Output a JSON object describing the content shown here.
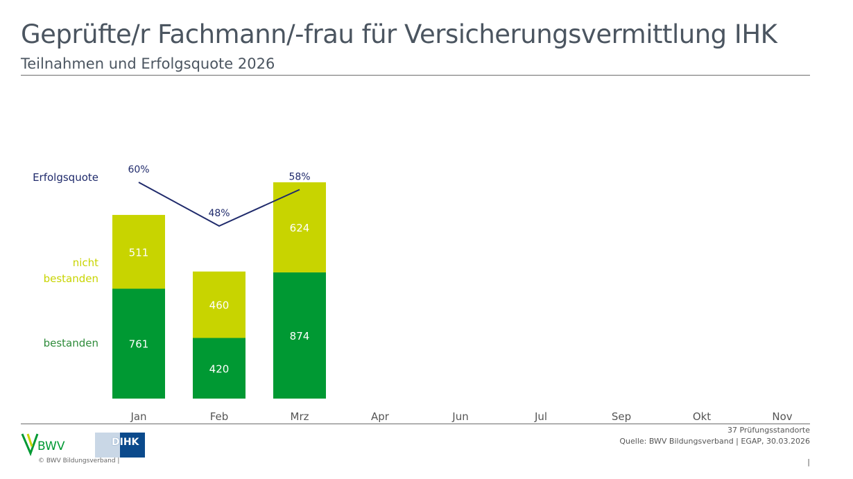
{
  "header": {
    "title": "Geprüfte/r Fachmann/-frau für Versicherungsvermittlung IHK",
    "subtitle": "Teilnahmen und Erfolgsquote 2026"
  },
  "chart_data": {
    "type": "bar",
    "stacked": true,
    "categories": [
      "Jan",
      "Feb",
      "Mrz",
      "Apr",
      "Jun",
      "Jul",
      "Sep",
      "Okt",
      "Nov"
    ],
    "series": [
      {
        "name": "bestanden",
        "values": [
          761,
          420,
          874,
          null,
          null,
          null,
          null,
          null,
          null
        ],
        "color": "#009933"
      },
      {
        "name": "nicht bestanden",
        "values": [
          511,
          460,
          624,
          null,
          null,
          null,
          null,
          null,
          null
        ],
        "color": "#c8d400"
      }
    ],
    "line_series": {
      "name": "Erfolgsquote",
      "values": [
        60,
        48,
        58,
        null,
        null,
        null,
        null,
        null,
        null
      ],
      "labels": [
        "60%",
        "48%",
        "58%"
      ],
      "color": "#1f2a6b"
    },
    "legend": {
      "quote": "Erfolgsquote",
      "nicht": "nicht",
      "bestanden_part": "bestanden",
      "bestanden": "bestanden"
    },
    "legend_placement": "left",
    "grid": false
  },
  "footer": {
    "sites": "37 Prüfungsstandorte",
    "source": "Quelle: BWV Bildungsverband | EGAP, 30.03.2026",
    "copyright": "© BWV Bildungsverband |",
    "page": "|",
    "bwv_logo": "BWV",
    "dihk_logo": "DIHK"
  }
}
